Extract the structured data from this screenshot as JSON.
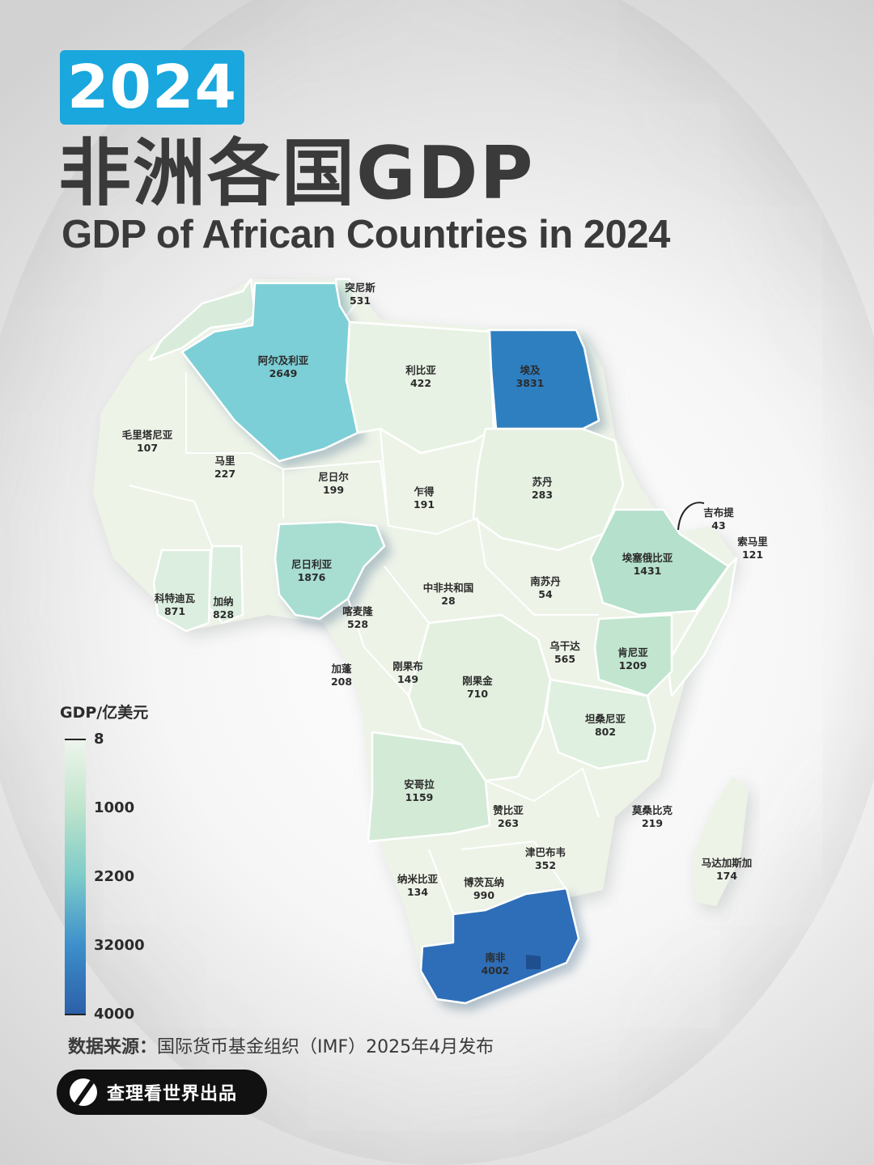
{
  "header": {
    "year": "2024",
    "title_cn": "非洲各国GDP",
    "title_en": "GDP of African Countries in 2024"
  },
  "legend": {
    "title": "GDP/亿美元",
    "labels": [
      "8",
      "1000",
      "2200",
      "32000",
      "4000"
    ],
    "colors": [
      "#eef5ec",
      "#bfe4cc",
      "#7ccbc9",
      "#3c8fcb",
      "#2c5fa8"
    ]
  },
  "countries": [
    {
      "name": "突尼斯",
      "value": "531"
    },
    {
      "name": "阿尔及利亚",
      "value": "2649"
    },
    {
      "name": "利比亚",
      "value": "422"
    },
    {
      "name": "埃及",
      "value": "3831"
    },
    {
      "name": "毛里塔尼亚",
      "value": "107"
    },
    {
      "name": "马里",
      "value": "227"
    },
    {
      "name": "尼日尔",
      "value": "199"
    },
    {
      "name": "乍得",
      "value": "191"
    },
    {
      "name": "苏丹",
      "value": "283"
    },
    {
      "name": "吉布提",
      "value": "43"
    },
    {
      "name": "索马里",
      "value": "121"
    },
    {
      "name": "埃塞俄比亚",
      "value": "1431"
    },
    {
      "name": "尼日利亚",
      "value": "1876"
    },
    {
      "name": "科特迪瓦",
      "value": "871"
    },
    {
      "name": "加纳",
      "value": "828"
    },
    {
      "name": "中非共和国",
      "value": "28"
    },
    {
      "name": "南苏丹",
      "value": "54"
    },
    {
      "name": "喀麦隆",
      "value": "528"
    },
    {
      "name": "乌干达",
      "value": "565"
    },
    {
      "name": "肯尼亚",
      "value": "1209"
    },
    {
      "name": "加蓬",
      "value": "208"
    },
    {
      "name": "刚果布",
      "value": "149"
    },
    {
      "name": "刚果金",
      "value": "710"
    },
    {
      "name": "坦桑尼亚",
      "value": "802"
    },
    {
      "name": "安哥拉",
      "value": "1159"
    },
    {
      "name": "赞比亚",
      "value": "263"
    },
    {
      "name": "莫桑比克",
      "value": "219"
    },
    {
      "name": "津巴布韦",
      "value": "352"
    },
    {
      "name": "马达加斯加",
      "value": "174"
    },
    {
      "name": "纳米比亚",
      "value": "134"
    },
    {
      "name": "博茨瓦纳",
      "value": "990"
    },
    {
      "name": "南非",
      "value": "4002"
    }
  ],
  "colors": {
    "low": "#eef3e8",
    "mid_low": "#cfe8d3",
    "mid": "#a8ddd2",
    "algeria": "#7ccfd6",
    "high": "#2f7fc0",
    "badge": "#19a7de"
  },
  "source": {
    "label": "数据来源：",
    "text": "国际货币基金组织（IMF）2025年4月发布"
  },
  "brand": {
    "text": "查理看世界出品",
    "icon": "brand-logo-icon"
  }
}
